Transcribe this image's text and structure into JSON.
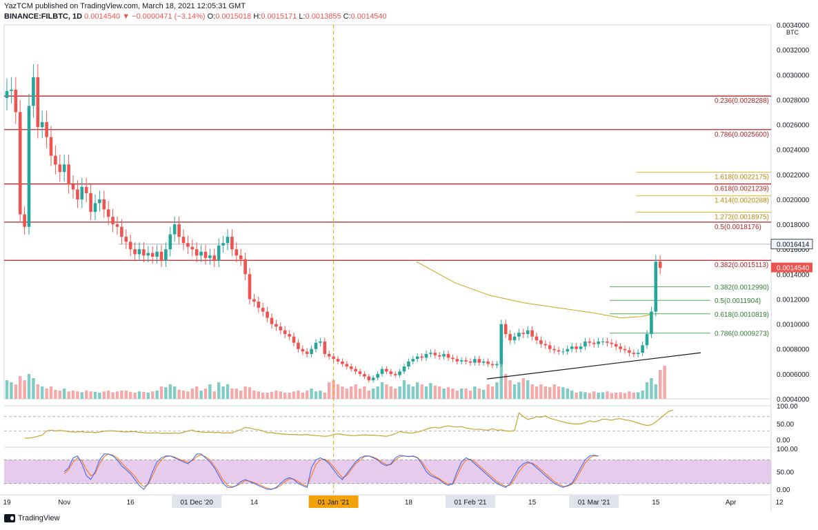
{
  "header": {
    "author_line": "YazTCM published on TradingView.com, March 18, 2021 12:05:31 GMT",
    "symbol": "BINANCE:FILBTC, 1D",
    "last": "0.0014540",
    "change": "−0.0000471 (−3.14%)",
    "o_label": "O:",
    "o": "0.0015018",
    "h_label": "H:",
    "h": "0.0015171",
    "l_label": "L:",
    "l": "0.0013855",
    "c_label": "C:",
    "c": "0.0014540"
  },
  "footer": {
    "brand": "TradingView"
  },
  "colors": {
    "up": "#26a69a",
    "down": "#ef5350",
    "resistance": "#b22222",
    "fib_green": "#4caf50",
    "fib_gold": "#e6b422",
    "ma": "#d4a017",
    "rsi": "#c9a227",
    "stoch_k": "#2962ff",
    "stoch_d": "#ff6d00",
    "stoch_band": "#e1bee7"
  },
  "chart_data": {
    "type": "candlestick",
    "price_unit": "BTC",
    "ylim": [
      0.0004,
      0.0034
    ],
    "price_ticks": [
      "0.0034000",
      "0.0032000",
      "0.0030000",
      "0.0028000",
      "0.0026000",
      "0.0024000",
      "0.0022000",
      "0.0020000",
      "0.0018000",
      "0.0016000",
      "0.0014000",
      "0.0012000",
      "0.0010000",
      "0.0008000",
      "0.0006000",
      "0.0004000"
    ],
    "x_ticks": [
      {
        "label": "19",
        "day": 0
      },
      {
        "label": "Nov",
        "day": 13
      },
      {
        "label": "16",
        "day": 28
      },
      {
        "label": "01 Dec '20",
        "day": 43,
        "boxed": true
      },
      {
        "label": "14",
        "day": 56
      },
      {
        "label": "01 Jan '21",
        "day": 74,
        "boxed": true,
        "highlight": true
      },
      {
        "label": "18",
        "day": 91
      },
      {
        "label": "01 Feb '21",
        "day": 105,
        "boxed": true
      },
      {
        "label": "15",
        "day": 119
      },
      {
        "label": "01 Mar '21",
        "day": 133,
        "boxed": true
      },
      {
        "label": "15",
        "day": 147
      },
      {
        "label": "Apr",
        "day": 164
      },
      {
        "label": "12",
        "day": 175
      }
    ],
    "start_date": "2020-10-19",
    "vertical_marker_day": 74,
    "closes": [
      0.00287,
      0.00288,
      0.0027,
      0.00188,
      0.00178,
      0.00275,
      0.00298,
      0.00258,
      0.00262,
      0.0025,
      0.00235,
      0.00228,
      0.00222,
      0.00228,
      0.00212,
      0.00208,
      0.002,
      0.0021,
      0.00205,
      0.0019,
      0.00197,
      0.002,
      0.00192,
      0.00186,
      0.0018,
      0.00178,
      0.0017,
      0.00166,
      0.0016,
      0.00156,
      0.0016,
      0.00155,
      0.00157,
      0.00154,
      0.00158,
      0.00151,
      0.0016,
      0.00172,
      0.0018,
      0.0017,
      0.00165,
      0.00162,
      0.0016,
      0.00155,
      0.00158,
      0.00153,
      0.00155,
      0.00151,
      0.00163,
      0.00165,
      0.0017,
      0.0016,
      0.00155,
      0.00152,
      0.0014,
      0.0012,
      0.00118,
      0.00113,
      0.0011,
      0.00105,
      0.001,
      0.00098,
      0.00095,
      0.00092,
      0.0009,
      0.00085,
      0.0008,
      0.00078,
      0.00076,
      0.0008,
      0.00085,
      0.00086,
      0.00076,
      0.00074,
      0.00072,
      0.0007,
      0.00068,
      0.00066,
      0.00064,
      0.00062,
      0.0006,
      0.00058,
      0.00055,
      0.00057,
      0.0006,
      0.00064,
      0.00062,
      0.0006,
      0.00059,
      0.00062,
      0.00066,
      0.0007,
      0.00072,
      0.00074,
      0.00073,
      0.00076,
      0.00077,
      0.00075,
      0.00074,
      0.00076,
      0.00073,
      0.00072,
      0.0007,
      0.00071,
      0.0007,
      0.00069,
      0.00072,
      0.00069,
      0.0007,
      0.00068,
      0.00067,
      0.00068,
      0.001,
      0.00092,
      0.00087,
      0.0009,
      0.00093,
      0.00092,
      0.00095,
      0.0009,
      0.00087,
      0.00084,
      0.00083,
      0.0008,
      0.00079,
      0.00078,
      0.00078,
      0.0008,
      0.00082,
      0.0008,
      0.00082,
      0.00086,
      0.00085,
      0.00084,
      0.00086,
      0.00086,
      0.00085,
      0.00084,
      0.00082,
      0.0008,
      0.00079,
      0.00077,
      0.00076,
      0.00077,
      0.00083,
      0.00092,
      0.0011,
      0.0015,
      0.00145
    ],
    "volumes": [
      0.45,
      0.4,
      0.35,
      0.55,
      0.45,
      0.6,
      0.5,
      0.35,
      0.3,
      0.25,
      0.3,
      0.22,
      0.2,
      0.25,
      0.18,
      0.2,
      0.18,
      0.16,
      0.2,
      0.18,
      0.17,
      0.15,
      0.18,
      0.2,
      0.16,
      0.18,
      0.2,
      0.2,
      0.17,
      0.15,
      0.18,
      0.17,
      0.15,
      0.18,
      0.2,
      0.3,
      0.28,
      0.35,
      0.3,
      0.22,
      0.2,
      0.18,
      0.25,
      0.3,
      0.2,
      0.25,
      0.35,
      0.18,
      0.4,
      0.3,
      0.35,
      0.25,
      0.25,
      0.2,
      0.3,
      0.28,
      0.2,
      0.18,
      0.15,
      0.15,
      0.17,
      0.2,
      0.18,
      0.15,
      0.15,
      0.18,
      0.2,
      0.15,
      0.2,
      0.25,
      0.18,
      0.2,
      0.15,
      0.4,
      0.45,
      0.35,
      0.3,
      0.25,
      0.3,
      0.35,
      0.25,
      0.3,
      0.2,
      0.25,
      0.3,
      0.4,
      0.35,
      0.3,
      0.25,
      0.3,
      0.45,
      0.35,
      0.3,
      0.4,
      0.35,
      0.3,
      0.38,
      0.32,
      0.3,
      0.25,
      0.28,
      0.25,
      0.2,
      0.25,
      0.25,
      0.2,
      0.3,
      0.25,
      0.22,
      0.35,
      0.3,
      0.4,
      1.0,
      0.6,
      0.45,
      0.35,
      0.4,
      0.5,
      0.45,
      0.35,
      0.3,
      0.35,
      0.3,
      0.28,
      0.35,
      0.3,
      0.28,
      0.25,
      0.2,
      0.15,
      0.18,
      0.16,
      0.14,
      0.18,
      0.15,
      0.16,
      0.18,
      0.14,
      0.15,
      0.16,
      0.14,
      0.18,
      0.15,
      0.16,
      0.2,
      0.4,
      0.5,
      0.35,
      0.7,
      0.8
    ],
    "current_price": "0.0014540",
    "high_marker": "0.0016414",
    "horizontal_levels": [
      {
        "price": 0.0028288,
        "label": "0.236(0.0028288)"
      },
      {
        "price": 0.00256,
        "label": "0.786(0.0025600)"
      },
      {
        "price": 0.0021239,
        "label": "0.618(0.0021239)"
      },
      {
        "price": 0.0018176,
        "label": "0.5(0.0018176)"
      },
      {
        "price": 0.0015113,
        "label": "0.382(0.0015113)"
      }
    ],
    "fib_extensions": [
      {
        "price": 0.0022175,
        "label": "1.618(0.0022175)"
      },
      {
        "price": 0.0020288,
        "label": "1.414(0.0020288)"
      },
      {
        "price": 0.0018975,
        "label": "1.272(0.0018975)"
      }
    ],
    "fib_retracements": [
      {
        "price": 0.001299,
        "label": "0.382(0.0012990)"
      },
      {
        "price": 0.0011904,
        "label": "0.5(0.0011904)"
      },
      {
        "price": 0.0010819,
        "label": "0.618(0.0010819)"
      },
      {
        "price": 0.0009273,
        "label": "0.786(0.0009273)"
      }
    ],
    "rsi": {
      "ticks": [
        "100.00",
        "50.00",
        "0.00"
      ],
      "values": [
        10,
        10,
        12,
        15,
        18,
        30,
        32,
        30,
        31,
        30,
        28,
        27,
        27,
        28,
        26,
        27,
        25,
        27,
        29,
        30,
        30,
        29,
        28,
        27,
        28,
        28,
        26,
        25,
        24,
        24,
        25,
        23,
        24,
        23,
        24,
        23,
        26,
        30,
        32,
        28,
        27,
        26,
        27,
        25,
        26,
        24,
        25,
        24,
        30,
        33,
        40,
        38,
        35,
        33,
        30,
        25,
        25,
        23,
        22,
        21,
        20,
        20,
        19,
        19,
        20,
        18,
        17,
        16,
        15,
        16,
        20,
        22,
        20,
        18,
        17,
        17,
        18,
        19,
        18,
        18,
        17,
        16,
        15,
        18,
        22,
        28,
        26,
        24,
        24,
        27,
        30,
        35,
        38,
        40,
        38,
        42,
        44,
        42,
        41,
        42,
        38,
        36,
        34,
        35,
        33,
        32,
        36,
        32,
        33,
        30,
        29,
        31,
        80,
        70,
        62,
        65,
        70,
        68,
        72,
        65,
        62,
        58,
        55,
        52,
        50,
        49,
        50,
        53,
        58,
        55,
        58,
        63,
        62,
        60,
        63,
        64,
        61,
        59,
        56,
        52,
        48,
        45,
        47,
        55,
        65,
        75,
        85,
        88
      ]
    },
    "stoch": {
      "ticks": [
        "100.00",
        "50.00",
        "0.00"
      ],
      "k": [
        50,
        60,
        85,
        90,
        70,
        40,
        30,
        50,
        80,
        95,
        95,
        90,
        80,
        65,
        55,
        45,
        30,
        15,
        5,
        20,
        50,
        75,
        85,
        90,
        90,
        85,
        80,
        75,
        70,
        80,
        95,
        95,
        85,
        75,
        60,
        40,
        20,
        10,
        10,
        15,
        25,
        30,
        25,
        20,
        15,
        10,
        5,
        5,
        10,
        20,
        30,
        35,
        30,
        20,
        15,
        10,
        60,
        80,
        85,
        80,
        70,
        55,
        40,
        30,
        45,
        60,
        75,
        85,
        90,
        90,
        85,
        80,
        70,
        65,
        70,
        85,
        92,
        90,
        88,
        90,
        85,
        70,
        50,
        40,
        35,
        30,
        20,
        15,
        20,
        50,
        75,
        85,
        80,
        70,
        60,
        50,
        40,
        30,
        20,
        15,
        10,
        20,
        40,
        60,
        70,
        75,
        70,
        60,
        50,
        40,
        30,
        20,
        15,
        10,
        15,
        20,
        40,
        60,
        80,
        90,
        92,
        90
      ],
      "d": [
        45,
        55,
        75,
        85,
        78,
        55,
        40,
        45,
        70,
        88,
        95,
        92,
        85,
        72,
        60,
        50,
        38,
        22,
        12,
        18,
        40,
        65,
        80,
        88,
        90,
        87,
        82,
        78,
        73,
        78,
        88,
        93,
        88,
        80,
        65,
        48,
        28,
        15,
        12,
        14,
        20,
        27,
        26,
        22,
        18,
        13,
        8,
        6,
        8,
        15,
        25,
        32,
        31,
        25,
        18,
        13,
        40,
        68,
        80,
        82,
        75,
        62,
        48,
        35,
        40,
        55,
        70,
        80,
        88,
        90,
        87,
        82,
        74,
        68,
        68,
        80,
        88,
        90,
        89,
        89,
        86,
        75,
        58,
        45,
        38,
        32,
        24,
        18,
        18,
        40,
        65,
        80,
        82,
        75,
        65,
        55,
        45,
        35,
        25,
        18,
        13,
        16,
        32,
        50,
        64,
        72,
        72,
        65,
        55,
        45,
        35,
        25,
        18,
        13,
        13,
        18,
        32,
        52,
        72,
        85,
        90,
        90
      ]
    }
  }
}
